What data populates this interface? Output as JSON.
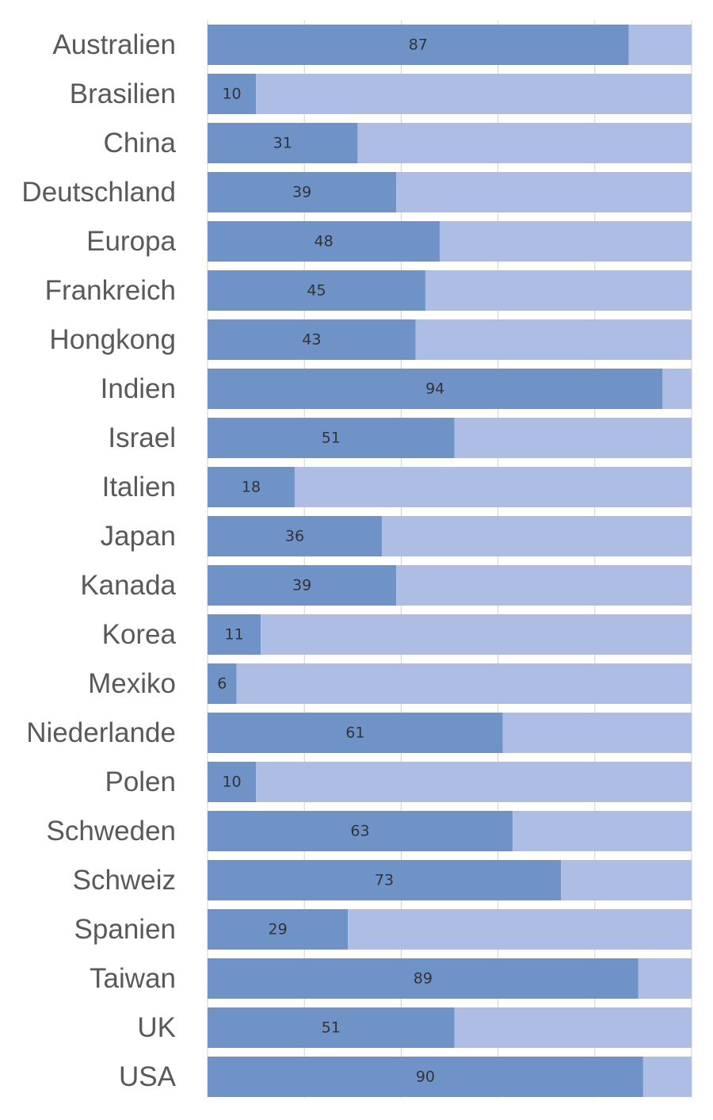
{
  "chart_data": {
    "type": "bar",
    "orientation": "horizontal",
    "stacked": true,
    "title": "",
    "xlabel": "",
    "ylabel": "",
    "xlim": [
      0,
      100
    ],
    "grid": true,
    "legend": "none",
    "categories": [
      "Australien",
      "Brasilien",
      "China",
      "Deutschland",
      "Europa",
      "Frankreich",
      "Hongkong",
      "Indien",
      "Israel",
      "Italien",
      "Japan",
      "Kanada",
      "Korea",
      "Mexiko",
      "Niederlande",
      "Polen",
      "Schweden",
      "Schweiz",
      "Spanien",
      "Taiwan",
      "UK",
      "USA"
    ],
    "series": [
      {
        "name": "value",
        "values": [
          87,
          10,
          31,
          39,
          48,
          45,
          43,
          94,
          51,
          18,
          36,
          39,
          11,
          6,
          61,
          10,
          63,
          73,
          29,
          89,
          51,
          90
        ],
        "show_labels": true
      },
      {
        "name": "remainder",
        "values": [
          13,
          90,
          69,
          61,
          52,
          55,
          57,
          6,
          49,
          82,
          64,
          61,
          89,
          94,
          39,
          90,
          37,
          27,
          71,
          11,
          49,
          10
        ],
        "show_labels": false
      }
    ],
    "colors": {
      "value": "#7093c7",
      "remainder": "#adbde3",
      "grid": "#d0d0d0",
      "category_text": "#595959",
      "label_text": "#333333"
    }
  }
}
